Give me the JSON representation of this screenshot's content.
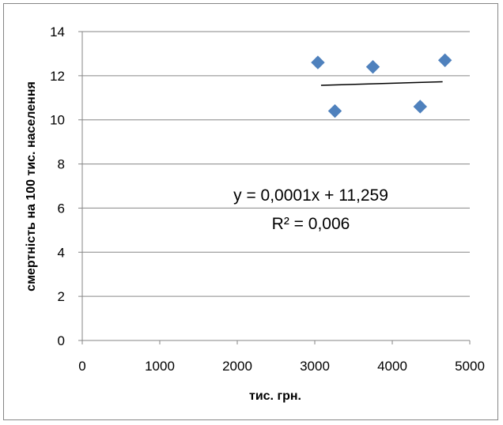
{
  "chart_data": {
    "type": "scatter",
    "title": "",
    "xlabel": "тис. грн.",
    "ylabel": "смертність на 100 тис. населення",
    "xlim": [
      0,
      5000
    ],
    "ylim": [
      0,
      14
    ],
    "x_ticks": [
      0,
      1000,
      2000,
      3000,
      4000,
      5000
    ],
    "y_ticks": [
      0,
      2,
      4,
      6,
      8,
      10,
      12,
      14
    ],
    "x_tick_labels": [
      "0",
      "1000",
      "2000",
      "3000",
      "4000",
      "5000"
    ],
    "y_tick_labels": [
      "0",
      "2",
      "4",
      "6",
      "8",
      "10",
      "12",
      "14"
    ],
    "grid": "horizontal",
    "legend": "none",
    "series": [
      {
        "marker": "diamond",
        "color": "#4F81BD",
        "points": [
          {
            "x": 3040,
            "y": 12.6
          },
          {
            "x": 3260,
            "y": 10.4
          },
          {
            "x": 3750,
            "y": 12.4
          },
          {
            "x": 4360,
            "y": 10.6
          },
          {
            "x": 4680,
            "y": 12.7
          }
        ]
      }
    ],
    "trendline": {
      "type": "linear",
      "slope": 0.0001,
      "intercept": 11.259,
      "x_range": [
        3040,
        4680
      ],
      "color": "#000000"
    },
    "annotations": {
      "equation": "y = 0,0001x + 11,259",
      "r_squared": "R² = 0,006"
    }
  }
}
